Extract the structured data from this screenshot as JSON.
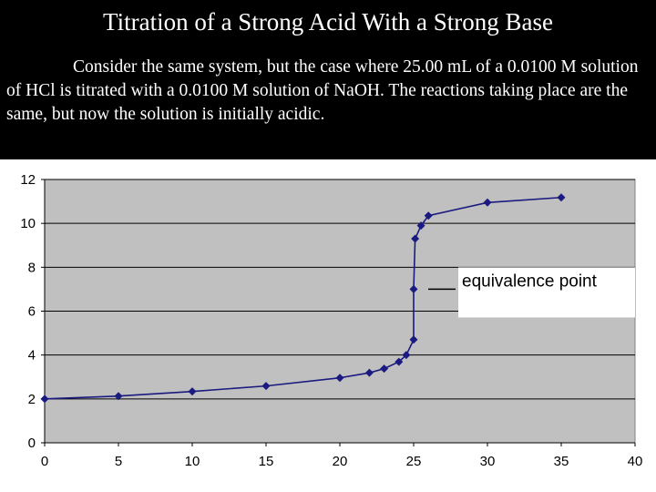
{
  "slide": {
    "title": "Titration of a Strong Acid With a Strong Base",
    "body": "Consider the same system, but the case where 25.00 mL of a 0.0100 M solution of HCl is titrated with a 0.0100 M solution of NaOH. The reactions taking place are the same, but now the solution is initially acidic."
  },
  "chart_data": {
    "type": "line",
    "title": "",
    "xlabel": "",
    "ylabel": "",
    "xlim": [
      0,
      40
    ],
    "ylim": [
      0,
      12
    ],
    "x_ticks": [
      0,
      5,
      10,
      15,
      20,
      25,
      30,
      35,
      40
    ],
    "y_ticks": [
      0,
      2,
      4,
      6,
      8,
      10,
      12
    ],
    "grid": "horizontal",
    "plot_background": "#c0c0c0",
    "series": [
      {
        "color": "#1a1a80",
        "x": [
          0,
          5,
          10,
          15,
          20,
          22,
          23,
          24,
          24.5,
          25,
          25,
          25.1,
          25.5,
          26,
          30,
          35
        ],
        "y": [
          2.0,
          2.13,
          2.34,
          2.59,
          2.96,
          3.19,
          3.38,
          3.69,
          4.0,
          4.7,
          7.0,
          9.3,
          9.9,
          10.35,
          10.95,
          11.18
        ]
      }
    ],
    "annotations": [
      {
        "text": "equivalence point",
        "x": 25,
        "y": 7.0
      }
    ]
  }
}
